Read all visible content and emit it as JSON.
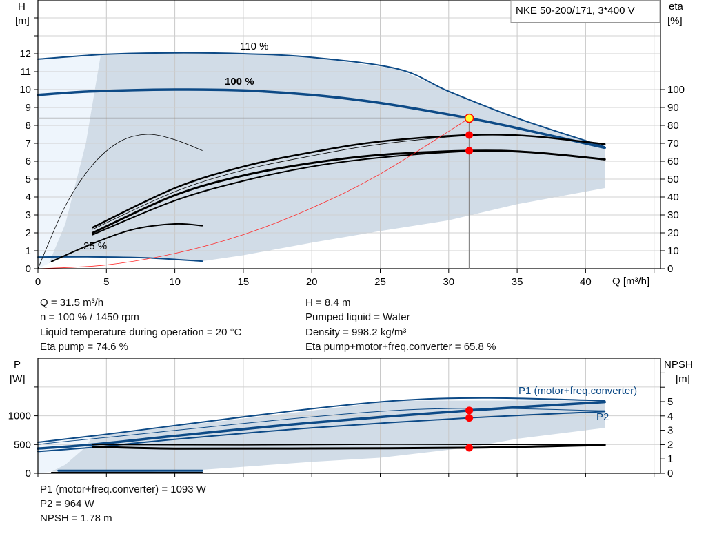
{
  "chart_data": [
    {
      "type": "line",
      "title": "NKE 50-200/171, 3*400 V",
      "xlabel": "Q [m³/h]",
      "ylabel": "H\n[m]",
      "ylabel_top": "H",
      "ylabel_unit": "[m]",
      "y2label_top": "eta",
      "y2label_unit": "[%]",
      "xlim": [
        0,
        45
      ],
      "ylim": [
        0,
        14
      ],
      "y2lim": [
        0,
        100
      ],
      "xticks": [
        "0",
        "5",
        "10",
        "15",
        "20",
        "25",
        "30",
        "35",
        "40"
      ],
      "yticks": [
        "0",
        "1",
        "2",
        "3",
        "4",
        "5",
        "6",
        "7",
        "8",
        "9",
        "10",
        "11",
        "12"
      ],
      "y2ticks": [
        "0",
        "10",
        "20",
        "30",
        "40",
        "50",
        "60",
        "70",
        "80",
        "90",
        "100"
      ],
      "grid": true,
      "curve_labels": {
        "h110": "110 %",
        "h100": "100 %",
        "h25": "25 %"
      },
      "series": [
        {
          "id": "h110",
          "axis": "H",
          "color": "#0d4a86",
          "width": 2,
          "points": [
            [
              0,
              11.7
            ],
            [
              5,
              11.97
            ],
            [
              10,
              12.05
            ],
            [
              15,
              12.0
            ],
            [
              20,
              11.8
            ],
            [
              26.3,
              11.15
            ],
            [
              30,
              9.9
            ],
            [
              35,
              8.4
            ],
            [
              41.4,
              6.8
            ]
          ]
        },
        {
          "id": "h100",
          "axis": "H",
          "color": "#0d4a86",
          "width": 3.5,
          "points": [
            [
              0,
              9.7
            ],
            [
              4,
              9.9
            ],
            [
              10,
              10.0
            ],
            [
              15,
              9.95
            ],
            [
              20,
              9.7
            ],
            [
              25,
              9.25
            ],
            [
              31.5,
              8.4
            ],
            [
              35,
              7.85
            ],
            [
              41.4,
              6.75
            ]
          ]
        },
        {
          "id": "h25",
          "axis": "H",
          "color": "#0d4a86",
          "width": 2,
          "points": [
            [
              0,
              0.65
            ],
            [
              4,
              0.66
            ],
            [
              8,
              0.6
            ],
            [
              12,
              0.42
            ]
          ]
        },
        {
          "id": "eta_pump",
          "axis": "eta",
          "color": "#000",
          "width": 2.5,
          "points": [
            [
              4,
              23
            ],
            [
              10,
              45
            ],
            [
              15,
              57
            ],
            [
              20,
              65
            ],
            [
              25,
              71
            ],
            [
              31.5,
              74.6
            ],
            [
              36,
              74
            ],
            [
              41.4,
              69.5
            ]
          ]
        },
        {
          "id": "eta_pump_thin",
          "axis": "eta",
          "color": "#000",
          "width": 0.8,
          "points": [
            [
              4,
              22
            ],
            [
              10,
              43
            ],
            [
              15,
              55
            ],
            [
              20,
              63
            ],
            [
              25,
              69.5
            ],
            [
              31.5,
              74.3
            ],
            [
              36,
              74
            ],
            [
              41.4,
              69.5
            ]
          ]
        },
        {
          "id": "eta_total",
          "axis": "eta",
          "color": "#000",
          "width": 3,
          "points": [
            [
              4,
              20
            ],
            [
              10,
              41
            ],
            [
              15,
              52
            ],
            [
              20,
              59
            ],
            [
              25,
              63.5
            ],
            [
              31.5,
              65.8
            ],
            [
              36,
              65
            ],
            [
              41.4,
              61
            ]
          ]
        },
        {
          "id": "eta_total_2",
          "axis": "eta",
          "color": "#000",
          "width": 2,
          "points": [
            [
              4,
              19
            ],
            [
              10,
              38
            ],
            [
              15,
              49
            ],
            [
              20,
              57
            ],
            [
              25,
              62
            ],
            [
              31.5,
              65.6
            ],
            [
              36,
              65
            ],
            [
              41.4,
              61
            ]
          ]
        },
        {
          "id": "eta_pump_25",
          "axis": "eta",
          "color": "#000",
          "width": 0.8,
          "points": [
            [
              0,
              0
            ],
            [
              2,
              35
            ],
            [
              4,
              58
            ],
            [
              6,
              71
            ],
            [
              8,
              75
            ],
            [
              10,
              72
            ],
            [
              12,
              66
            ]
          ]
        },
        {
          "id": "eta_total_25",
          "axis": "eta",
          "color": "#000",
          "width": 2,
          "points": [
            [
              1,
              4
            ],
            [
              4,
              14
            ],
            [
              7,
              22
            ],
            [
              10,
              25
            ],
            [
              12,
              24
            ]
          ]
        },
        {
          "id": "system_curve",
          "axis": "H",
          "color": "#ff2a2a",
          "width": 0.8,
          "points": [
            [
              0,
              0
            ],
            [
              5,
              0.21
            ],
            [
              10,
              0.85
            ],
            [
              15,
              1.9
            ],
            [
              20,
              3.39
            ],
            [
              25,
              5.29
            ],
            [
              31.5,
              8.4
            ]
          ]
        }
      ],
      "operating_point": {
        "Q": 31.5,
        "H": 8.4,
        "eta_pump": 74.6,
        "eta_total": 65.8
      },
      "regions": {
        "light": [
          [
            0,
            0
          ],
          [
            0,
            11.7
          ],
          [
            4.6,
            12.0
          ],
          [
            3.5,
            7
          ],
          [
            2,
            2.5
          ],
          [
            0.8,
            0.3
          ]
        ],
        "grey": [
          [
            0.8,
            0.3
          ],
          [
            2,
            2.5
          ],
          [
            3.5,
            7
          ],
          [
            4.6,
            12.0
          ],
          [
            10,
            12.05
          ],
          [
            15,
            12.0
          ],
          [
            20,
            11.8
          ],
          [
            26.3,
            11.15
          ],
          [
            30,
            9.9
          ],
          [
            35,
            8.4
          ],
          [
            41.4,
            6.8
          ],
          [
            41.4,
            4.5
          ],
          [
            35,
            3.6
          ],
          [
            30,
            2.7
          ],
          [
            25,
            2.1
          ],
          [
            20,
            1.45
          ],
          [
            15,
            0.75
          ],
          [
            12,
            0.42
          ],
          [
            8,
            0.6
          ],
          [
            4,
            0.66
          ],
          [
            1.5,
            0.66
          ]
        ]
      }
    },
    {
      "type": "line",
      "ylabel_top": "P",
      "ylabel_unit": "[W]",
      "y2label_top": "NPSH",
      "y2label_unit": "[m]",
      "xlim": [
        0,
        45
      ],
      "ylim": [
        0,
        1800
      ],
      "y2lim": [
        0,
        7
      ],
      "yticks": [
        "0",
        "500",
        "1000"
      ],
      "y2ticks": [
        "0",
        "1",
        "2",
        "3",
        "4",
        "5"
      ],
      "grid": true,
      "curve_labels": {
        "p1": "P1 (motor+freq.converter)",
        "p2": "P2"
      },
      "series": [
        {
          "id": "p1_110",
          "axis": "P",
          "color": "#0d4a86",
          "width": 2,
          "points": [
            [
              0,
              540
            ],
            [
              4,
              650
            ],
            [
              26.3,
              1265
            ],
            [
              41.4,
              1265
            ]
          ]
        },
        {
          "id": "p2_110",
          "axis": "P",
          "color": "#0d4a86",
          "width": 1,
          "points": [
            [
              0,
              500
            ],
            [
              4,
              600
            ],
            [
              26.3,
              1095
            ],
            [
              41.4,
              1090
            ]
          ]
        },
        {
          "id": "p1",
          "axis": "P",
          "color": "#0d4a86",
          "width": 3.5,
          "points": [
            [
              0,
              430
            ],
            [
              4,
              500
            ],
            [
              10,
              650
            ],
            [
              20,
              880
            ],
            [
              31.5,
              1093
            ],
            [
              41.4,
              1240
            ]
          ]
        },
        {
          "id": "p2",
          "axis": "P",
          "color": "#0d4a86",
          "width": 2,
          "points": [
            [
              0,
              380
            ],
            [
              4,
              450
            ],
            [
              10,
              590
            ],
            [
              20,
              790
            ],
            [
              31.5,
              964
            ],
            [
              41.4,
              1075
            ]
          ]
        },
        {
          "id": "p1_25",
          "axis": "P",
          "color": "#0d4a86",
          "width": 3,
          "points": [
            [
              1.5,
              45
            ],
            [
              12,
              45
            ]
          ]
        },
        {
          "id": "npsh",
          "axis": "NPSH",
          "color": "#000",
          "width": 3,
          "points": [
            [
              4,
              1.85
            ],
            [
              10,
              1.72
            ],
            [
              20,
              1.73
            ],
            [
              31.5,
              1.78
            ],
            [
              41.4,
              1.98
            ]
          ]
        },
        {
          "id": "npsh_110",
          "axis": "NPSH",
          "color": "#000",
          "width": 1.5,
          "points": [
            [
              4,
              2.0
            ],
            [
              15,
              1.98
            ],
            [
              26.3,
              2.02
            ],
            [
              41.4,
              1.98
            ]
          ]
        },
        {
          "id": "npsh_25",
          "axis": "NPSH",
          "color": "#000",
          "width": 2,
          "points": [
            [
              1,
              0.05
            ],
            [
              12,
              0.05
            ]
          ]
        }
      ],
      "operating_point": {
        "Q": 31.5,
        "P1": 1093,
        "P2": 964,
        "NPSH": 1.78
      },
      "regions": {
        "light": [
          [
            0,
            0
          ],
          [
            0,
            540
          ],
          [
            4,
            650
          ],
          [
            3.5,
            460
          ],
          [
            2,
            150
          ],
          [
            1,
            30
          ]
        ],
        "grey": [
          [
            1,
            30
          ],
          [
            2,
            150
          ],
          [
            3.5,
            460
          ],
          [
            4,
            650
          ],
          [
            26.3,
            1265
          ],
          [
            41.4,
            1265
          ],
          [
            41.4,
            790
          ],
          [
            35,
            600
          ],
          [
            31.5,
            450
          ],
          [
            25,
            270
          ],
          [
            20,
            200
          ],
          [
            12,
            60
          ],
          [
            6,
            5
          ]
        ]
      }
    }
  ],
  "readout": {
    "left": [
      "Q = 31.5 m³/h",
      "n = 100 % / 1450 rpm",
      "Liquid temperature during operation = 20 °C",
      "Eta pump = 74.6 %"
    ],
    "right": [
      "H = 8.4 m",
      "Pumped liquid = Water",
      "Density = 998.2 kg/m³",
      "Eta pump+motor+freq.converter = 65.8 %"
    ],
    "bottom": [
      "P1 (motor+freq.converter) = 1093 W",
      "P2 = 964 W",
      "NPSH = 1.78 m"
    ]
  },
  "colors": {
    "curve_blue": "#0d4a86",
    "region_grey": "#d1dce7",
    "region_light": "#eef5fc",
    "point_red": "#ff0000",
    "point_yellow": "#ffff33",
    "system_curve": "#ff2a2a"
  }
}
